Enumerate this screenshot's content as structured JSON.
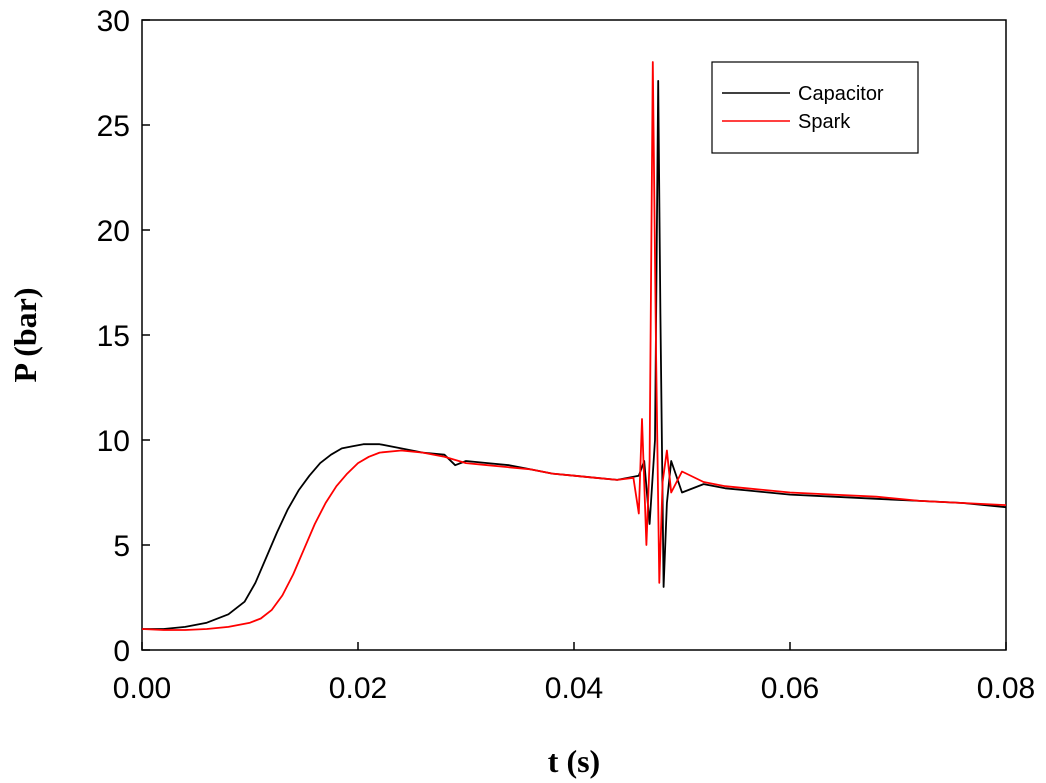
{
  "chart_data": {
    "type": "line",
    "title": "",
    "xlabel": "t (s)",
    "ylabel": "P (bar)",
    "xlim": [
      0,
      0.08
    ],
    "ylim": [
      0,
      30
    ],
    "xticks": [
      "0.00",
      "0.02",
      "0.04",
      "0.06",
      "0.08"
    ],
    "yticks": [
      "0",
      "5",
      "10",
      "15",
      "20",
      "25",
      "30"
    ],
    "grid": false,
    "legend": {
      "placement": "top-right"
    },
    "series": [
      {
        "name": "Capacitor",
        "color": "#000000",
        "x": [
          0.0,
          0.002,
          0.004,
          0.006,
          0.008,
          0.0095,
          0.0105,
          0.0115,
          0.0125,
          0.0135,
          0.0145,
          0.0155,
          0.0165,
          0.0175,
          0.0185,
          0.0195,
          0.0205,
          0.022,
          0.024,
          0.026,
          0.028,
          0.029,
          0.03,
          0.032,
          0.034,
          0.036,
          0.038,
          0.04,
          0.042,
          0.044,
          0.046,
          0.0465,
          0.047,
          0.0475,
          0.0478,
          0.048,
          0.0483,
          0.0486,
          0.049,
          0.05,
          0.052,
          0.054,
          0.056,
          0.058,
          0.06,
          0.064,
          0.068,
          0.072,
          0.076,
          0.08
        ],
        "y": [
          1.0,
          1.0,
          1.1,
          1.3,
          1.7,
          2.3,
          3.2,
          4.4,
          5.6,
          6.7,
          7.6,
          8.3,
          8.9,
          9.3,
          9.6,
          9.7,
          9.8,
          9.8,
          9.6,
          9.4,
          9.3,
          8.8,
          9.0,
          8.9,
          8.8,
          8.6,
          8.4,
          8.3,
          8.2,
          8.1,
          8.3,
          9.0,
          6.0,
          10.0,
          27.1,
          16.0,
          3.0,
          7.0,
          9.0,
          7.5,
          7.9,
          7.7,
          7.6,
          7.5,
          7.4,
          7.3,
          7.2,
          7.1,
          7.0,
          6.8
        ]
      },
      {
        "name": "Spark",
        "color": "#ff0000",
        "x": [
          0.0,
          0.002,
          0.004,
          0.006,
          0.008,
          0.01,
          0.011,
          0.012,
          0.013,
          0.014,
          0.015,
          0.016,
          0.017,
          0.018,
          0.019,
          0.02,
          0.021,
          0.022,
          0.024,
          0.026,
          0.028,
          0.03,
          0.032,
          0.034,
          0.036,
          0.038,
          0.04,
          0.042,
          0.044,
          0.0455,
          0.046,
          0.0463,
          0.0467,
          0.047,
          0.0473,
          0.0476,
          0.0479,
          0.0482,
          0.0486,
          0.049,
          0.05,
          0.052,
          0.054,
          0.056,
          0.058,
          0.06,
          0.064,
          0.068,
          0.072,
          0.076,
          0.08
        ],
        "y": [
          1.0,
          0.95,
          0.95,
          1.0,
          1.1,
          1.3,
          1.5,
          1.9,
          2.6,
          3.6,
          4.8,
          6.0,
          7.0,
          7.8,
          8.4,
          8.9,
          9.2,
          9.4,
          9.5,
          9.4,
          9.2,
          8.9,
          8.8,
          8.7,
          8.6,
          8.4,
          8.3,
          8.2,
          8.1,
          8.2,
          6.5,
          11.0,
          5.0,
          9.0,
          28.0,
          14.0,
          3.2,
          8.0,
          9.5,
          7.5,
          8.5,
          8.0,
          7.8,
          7.7,
          7.6,
          7.5,
          7.4,
          7.3,
          7.1,
          7.0,
          6.9
        ]
      }
    ]
  }
}
